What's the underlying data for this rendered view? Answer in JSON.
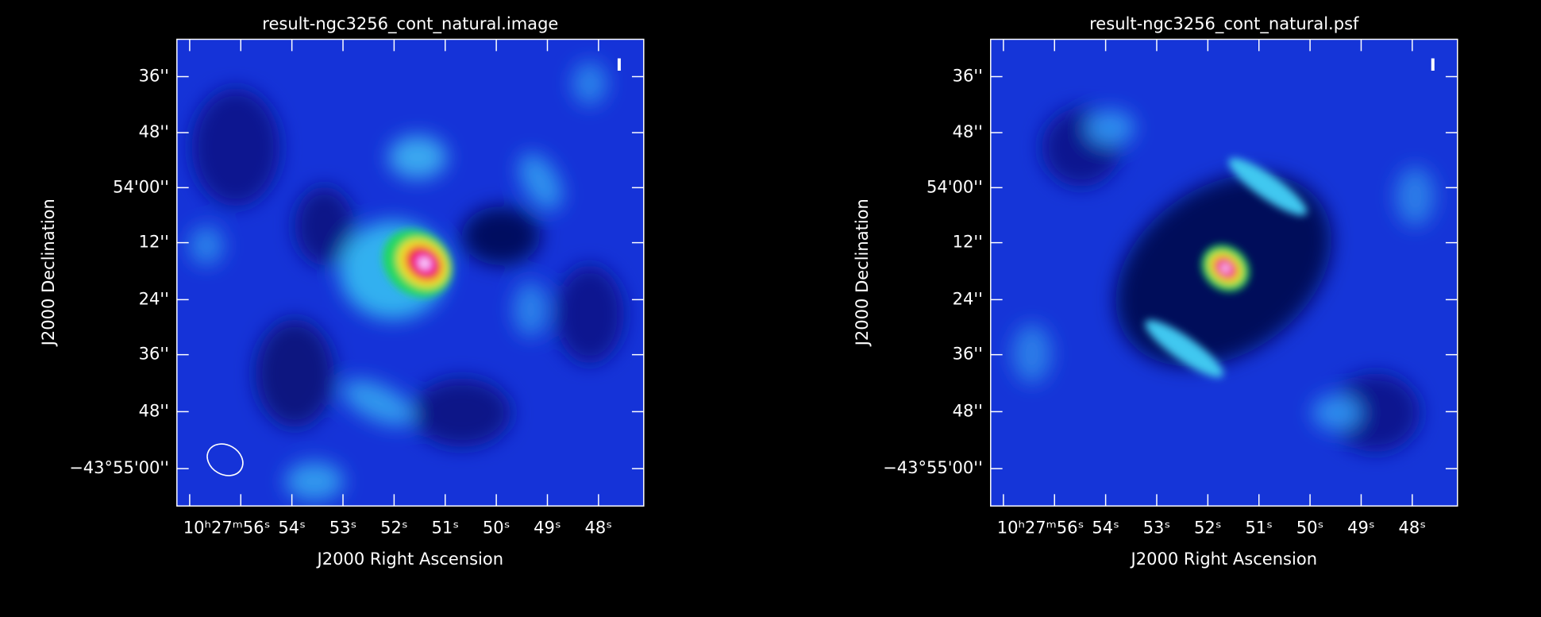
{
  "panels": [
    {
      "title": "result-ngc3256_cont_natural.image",
      "stokes": "I",
      "x_axis": {
        "label": "J2000 Right Ascension",
        "ticks": [
          "10ʰ27ᵐ56ˢ",
          "54ˢ",
          "53ˢ",
          "52ˢ",
          "51ˢ",
          "50ˢ",
          "49ˢ",
          "48ˢ"
        ]
      },
      "y_axis": {
        "label": "J2000 Declination",
        "ticks": [
          "36''",
          "48''",
          "54'00''",
          "12''",
          "24''",
          "36''",
          "48''",
          "−43°55'00''"
        ]
      }
    },
    {
      "title": "result-ngc3256_cont_natural.psf",
      "stokes": "I",
      "x_axis": {
        "label": "J2000 Right Ascension",
        "ticks": [
          "10ʰ27ᵐ56ˢ",
          "54ˢ",
          "53ˢ",
          "52ˢ",
          "51ˢ",
          "50ˢ",
          "49ˢ",
          "48ˢ"
        ]
      },
      "y_axis": {
        "label": "J2000 Declination",
        "ticks": [
          "36''",
          "48''",
          "54'00''",
          "12''",
          "24''",
          "36''",
          "48''",
          "−43°55'00''"
        ]
      }
    }
  ]
}
